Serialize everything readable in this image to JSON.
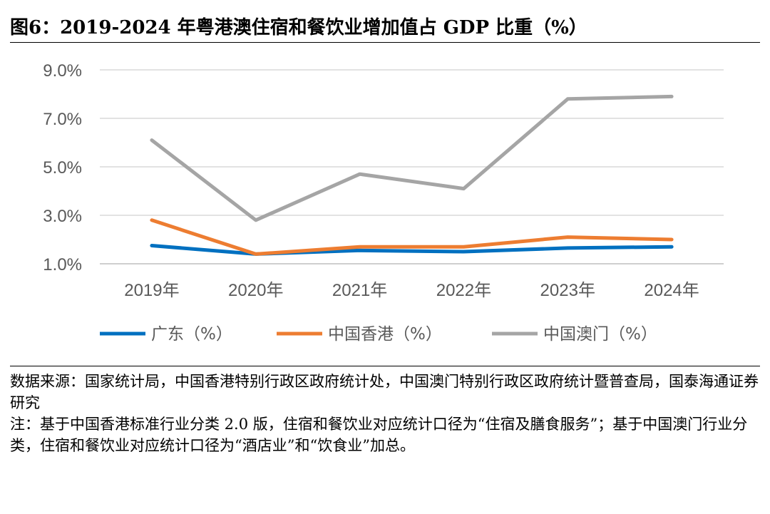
{
  "title": "图6：2019-2024 年粤港澳住宿和餐饮业增加值占 GDP 比重（%）",
  "chart_data": {
    "type": "line",
    "title": "图6：2019-2024 年粤港澳住宿和餐饮业增加值占 GDP 比重（%）",
    "categories": [
      "2019年",
      "2020年",
      "2021年",
      "2022年",
      "2023年",
      "2024年"
    ],
    "series": [
      {
        "name": "广东（%）",
        "color": "#0070C0",
        "values": [
          1.75,
          1.4,
          1.55,
          1.5,
          1.65,
          1.7
        ]
      },
      {
        "name": "中国香港（%）",
        "color": "#ED7D31",
        "values": [
          2.8,
          1.4,
          1.7,
          1.7,
          2.1,
          2.0
        ]
      },
      {
        "name": "中国澳门（%）",
        "color": "#A5A5A5",
        "values": [
          6.1,
          2.8,
          4.7,
          4.1,
          7.8,
          7.9
        ]
      }
    ],
    "yticks": [
      "1.0%",
      "3.0%",
      "5.0%",
      "7.0%",
      "9.0%"
    ],
    "ytick_values": [
      1,
      3,
      5,
      7,
      9
    ],
    "ylim": [
      1,
      9
    ],
    "xlabel": "",
    "ylabel": "",
    "grid": true,
    "legend_position": "bottom"
  },
  "notes": {
    "source": "数据来源：国家统计局，中国香港特别行政区政府统计处，中国澳门特别行政区政府统计暨普查局，国泰海通证券研究",
    "note": "注：基于中国香港标准行业分类 2.0 版，住宿和餐饮业对应统计口径为“住宿及膳食服务”；基于中国澳门行业分类，住宿和餐饮业对应统计口径为“酒店业”和“饮食业”加总。"
  }
}
